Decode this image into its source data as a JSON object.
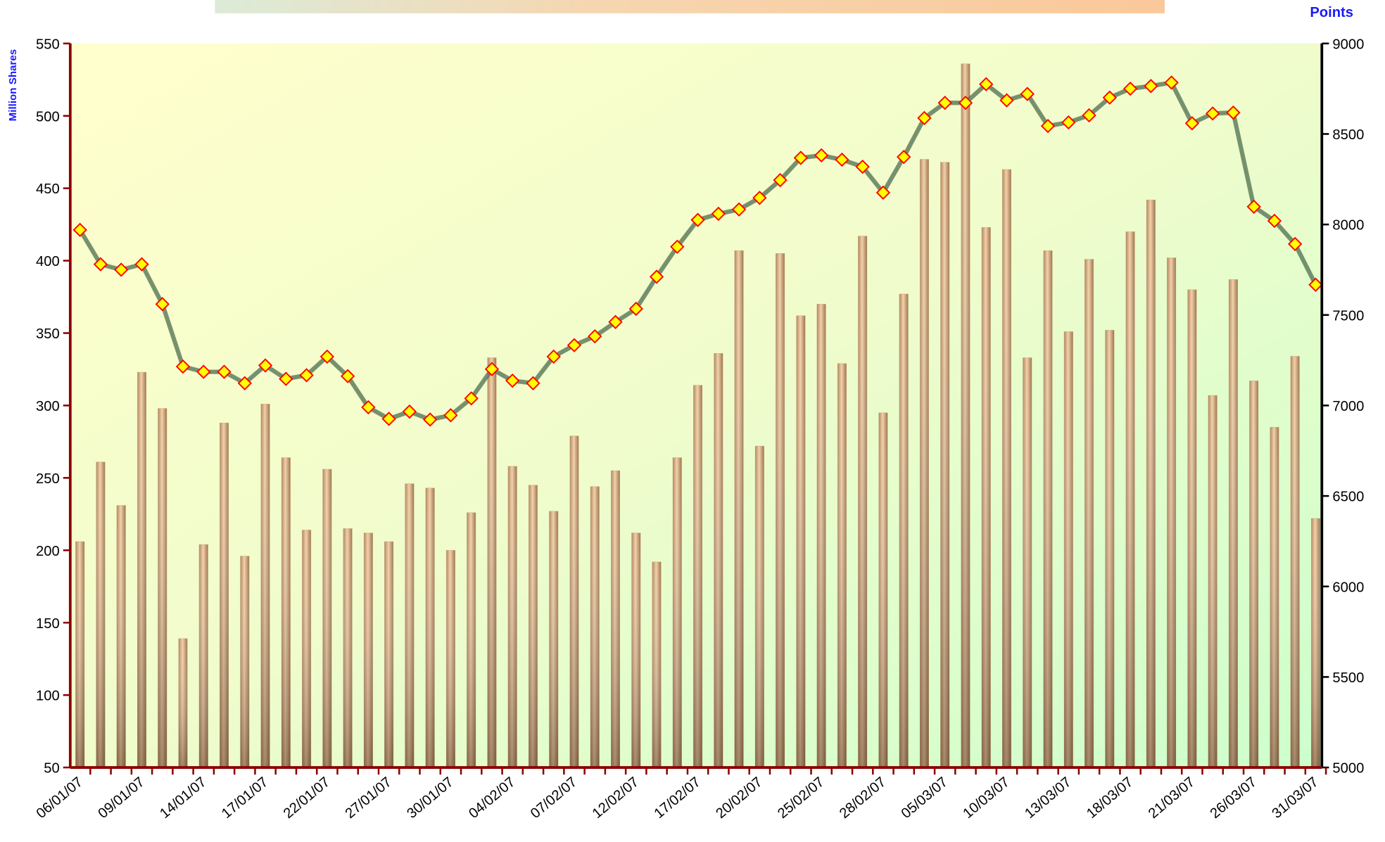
{
  "chart_data": {
    "type": "bar",
    "y_label": "Million Shares",
    "y2_label": "Points",
    "categories": [
      "06/01/07",
      null,
      null,
      "09/01/07",
      null,
      null,
      "14/01/07",
      null,
      null,
      "17/01/07",
      null,
      null,
      "22/01/07",
      null,
      null,
      "27/01/07",
      null,
      null,
      "30/01/07",
      null,
      null,
      "04/02/07",
      null,
      null,
      "07/02/07",
      null,
      null,
      "12/02/07",
      null,
      null,
      "17/02/07",
      null,
      null,
      "20/02/07",
      null,
      null,
      "25/02/07",
      null,
      null,
      "28/02/07",
      null,
      null,
      "05/03/07",
      null,
      null,
      "10/03/07",
      null,
      null,
      "13/03/07",
      null,
      null,
      "18/03/07",
      null,
      null,
      "21/03/07",
      null,
      null,
      "26/03/07",
      null,
      null,
      "31/03/07"
    ],
    "series": [
      {
        "type": "bar",
        "color": "#c9a27c",
        "values": [
          206,
          261,
          231,
          323,
          298,
          139,
          204,
          288,
          196,
          301,
          264,
          214,
          256,
          215,
          212,
          206,
          246,
          243,
          200,
          226,
          333,
          258,
          245,
          227,
          279,
          244,
          255,
          212,
          192,
          264,
          314,
          336,
          407,
          272,
          405,
          362,
          370,
          329,
          417,
          295,
          377,
          470,
          468,
          536,
          423,
          463,
          333,
          407,
          351,
          401,
          352,
          420,
          442,
          402,
          380,
          307,
          387,
          317,
          285,
          334,
          222
        ]
      },
      {
        "type": "line",
        "axis": "y2",
        "color": "#6f8f6f",
        "values": [
          7970,
          7780,
          7750,
          7780,
          7560,
          7215,
          7186,
          7186,
          7123,
          7221,
          7147,
          7167,
          7270,
          7162,
          6990,
          6926,
          6966,
          6922,
          6946,
          7039,
          7201,
          7137,
          7123,
          7270,
          7333,
          7382,
          7461,
          7534,
          7711,
          7877,
          8025,
          8059,
          8083,
          8147,
          8245,
          8368,
          8382,
          8358,
          8319,
          8176,
          8373,
          8588,
          8672,
          8672,
          8775,
          8686,
          8721,
          8544,
          8564,
          8603,
          8701,
          8750,
          8765,
          8784,
          8559,
          8613,
          8618,
          8098,
          8020,
          7892,
          7667
        ]
      }
    ],
    "ylim": [
      50,
      550
    ],
    "yticks": [
      50,
      100,
      150,
      200,
      250,
      300,
      350,
      400,
      450,
      500,
      550
    ],
    "y2lim": [
      5000,
      9000
    ],
    "y2ticks": [
      5000,
      5500,
      6000,
      6500,
      7000,
      7500,
      8000,
      8500,
      9000
    ]
  }
}
